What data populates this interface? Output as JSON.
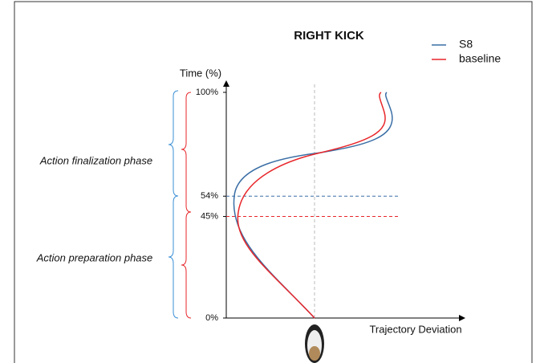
{
  "chart_data": {
    "type": "line",
    "title": "RIGHT KICK",
    "y_label": "Time (%)",
    "x_label": "Trajectory Deviation",
    "ylim": [
      0,
      100
    ],
    "yticks": [
      {
        "value": 0,
        "label": "0%"
      },
      {
        "value": 45,
        "label": "45%"
      },
      {
        "value": 54,
        "label": "54%"
      },
      {
        "value": 100,
        "label": "100%"
      }
    ],
    "series": [
      {
        "name": "S8",
        "color": "#3a6ea5"
      },
      {
        "name": "baseline",
        "color": "#e8262a"
      }
    ],
    "annotations": [
      "Action finalization phase",
      "Action preparation phase"
    ]
  }
}
